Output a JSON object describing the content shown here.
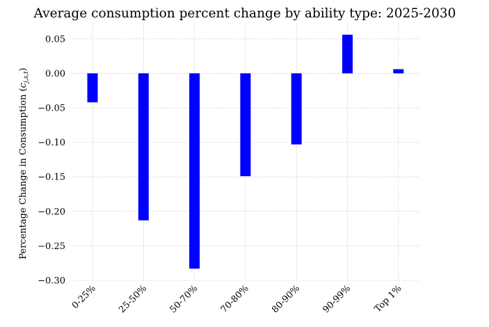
{
  "chart_data": {
    "type": "bar",
    "title": "Average consumption percent change by ability type: 2025-2030",
    "xlabel": "",
    "ylabel_text": "Percentage Change in Consumption (",
    "ylabel_math": {
      "base": "c",
      "subscript": "j,s,t"
    },
    "ylabel_close": ")",
    "categories": [
      "0-25%",
      "25-50%",
      "50-70%",
      "70-80%",
      "80-90%",
      "90-99%",
      "Top 1%"
    ],
    "values": [
      -0.042,
      -0.213,
      -0.283,
      -0.149,
      -0.103,
      0.056,
      0.006
    ],
    "ylim": [
      -0.3,
      0.072
    ],
    "yticks": [
      0.05,
      0.0,
      -0.05,
      -0.1,
      -0.15,
      -0.2,
      -0.25,
      -0.3
    ],
    "ytick_labels": [
      "0.05",
      "0.00",
      "−0.05",
      "−0.10",
      "−0.15",
      "−0.20",
      "−0.25",
      "−0.30"
    ],
    "grid": true,
    "bar_color": "#0000ff"
  }
}
